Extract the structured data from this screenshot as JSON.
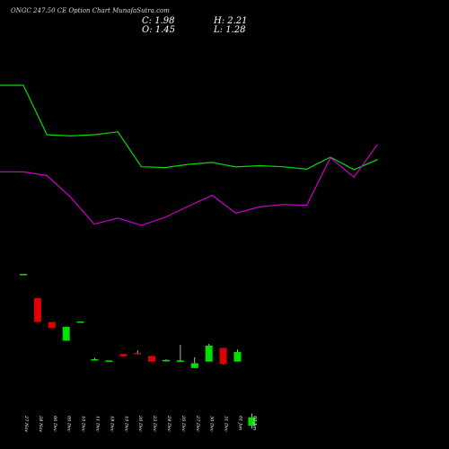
{
  "header": {
    "title": "ONGC 247.50 CE Option Chart MunafaSutra.com",
    "close": "C: 1.98",
    "high": "H: 2.21",
    "open": "O: 1.45",
    "low": "L: 1.28"
  },
  "colors": {
    "background": "#000000",
    "up": "#00e000",
    "down": "#e00000",
    "line_green": "#00dd00",
    "line_magenta": "#cc00cc",
    "text": "#ffffff"
  },
  "chart_data": {
    "type": "candlestick",
    "title": "ONGC 247.50 CE Option Chart MunafaSutra.com",
    "categories": [
      "27 Nov",
      "28 Nov",
      "06 Dec",
      "09 Dec",
      "10 Dec",
      "11 Dec",
      "18 Dec",
      "19 Dec",
      "20 Dec",
      "23 Dec",
      "24 Dec",
      "26 Dec",
      "27 Dec",
      "30 Dec",
      "31 Dec",
      "01 Jan",
      "02 Jan"
    ],
    "candles": [
      {
        "date": "27 Nov",
        "open": 10.92,
        "high": 10.92,
        "low": 10.92,
        "close": 10.92
      },
      {
        "date": "28 Nov",
        "open": 9.4,
        "high": 9.4,
        "low": 7.92,
        "close": 7.92
      },
      {
        "date": "06 Dec",
        "open": 7.92,
        "high": 7.92,
        "low": 7.55,
        "close": 7.55
      },
      {
        "date": "09 Dec",
        "open": 6.75,
        "high": 7.62,
        "low": 6.75,
        "close": 7.62
      },
      {
        "date": "10 Dec",
        "open": 7.95,
        "high": 7.95,
        "low": 7.95,
        "close": 7.95
      },
      {
        "date": "11 Dec",
        "open": 5.56,
        "high": 5.68,
        "low": 5.5,
        "close": 5.6
      },
      {
        "date": "18 Dec",
        "open": 5.52,
        "high": 5.52,
        "low": 5.52,
        "close": 5.52
      },
      {
        "date": "19 Dec",
        "open": 5.92,
        "high": 5.92,
        "low": 5.78,
        "close": 5.78
      },
      {
        "date": "20 Dec",
        "open": 6.0,
        "high": 6.15,
        "low": 5.9,
        "close": 5.92
      },
      {
        "date": "23 Dec",
        "open": 5.8,
        "high": 5.8,
        "low": 5.45,
        "close": 5.45
      },
      {
        "date": "24 Dec",
        "open": 5.5,
        "high": 5.6,
        "low": 5.45,
        "close": 5.55
      },
      {
        "date": "26 Dec",
        "open": 5.52,
        "high": 6.5,
        "low": 5.45,
        "close": 5.52
      },
      {
        "date": "27 Dec",
        "open": 5.05,
        "high": 5.72,
        "low": 5.05,
        "close": 5.35
      },
      {
        "date": "30 Dec",
        "open": 5.45,
        "high": 6.55,
        "low": 5.45,
        "close": 6.45
      },
      {
        "date": "31 Dec",
        "open": 6.3,
        "high": 6.3,
        "low": 5.28,
        "close": 5.3
      },
      {
        "date": "01 Jan",
        "open": 5.45,
        "high": 6.2,
        "low": 5.45,
        "close": 6.05
      },
      {
        "date": "02 Jan",
        "open": 1.45,
        "high": 2.21,
        "low": 1.28,
        "close": 1.98
      }
    ],
    "series": [
      {
        "values": [
          22.68,
          22.68,
          19.6,
          19.52,
          19.6,
          19.78,
          17.6,
          17.55,
          17.75,
          17.87,
          17.59,
          17.67,
          17.6,
          17.45,
          18.2,
          17.42,
          18.05
        ]
      },
      {
        "values": [
          17.28,
          17.28,
          17.05,
          15.7,
          14.02,
          14.4,
          13.95,
          14.45,
          15.15,
          15.82,
          14.7,
          15.1,
          15.25,
          15.2,
          18.16,
          16.95,
          19.0
        ]
      }
    ],
    "ylim": [
      0,
      28
    ],
    "xlabel": "",
    "ylabel": "",
    "grid": false
  }
}
